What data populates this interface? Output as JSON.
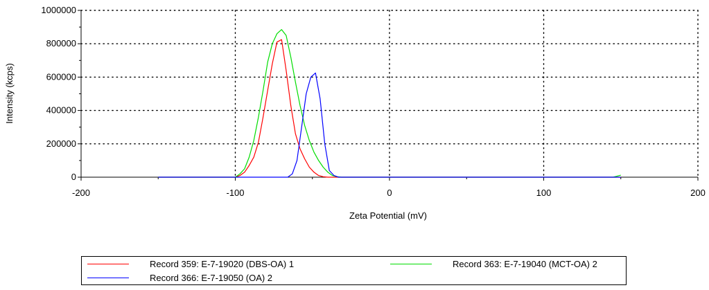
{
  "chart_data": {
    "type": "line",
    "title": "",
    "xlabel": "Zeta Potential (mV)",
    "ylabel": "Intensity (kcps)",
    "xlim": [
      -200,
      200
    ],
    "ylim": [
      0,
      1000000
    ],
    "x_ticks": [
      -200,
      -100,
      0,
      100,
      200
    ],
    "y_ticks": [
      0,
      200000,
      400000,
      600000,
      800000,
      1000000
    ],
    "x_tick_labels": [
      "-200",
      "-100",
      "0",
      "100",
      "200"
    ],
    "y_tick_labels": [
      "0",
      "200000",
      "400000",
      "600000",
      "800000",
      "1000000"
    ],
    "grid": true,
    "legend_position": "bottom",
    "series": [
      {
        "name": "Record 359: E-7-19020 (DBS-OA)  1",
        "color": "#ff0000",
        "x": [
          -150,
          -100,
          -97,
          -94,
          -91,
          -88,
          -85,
          -82,
          -79,
          -76,
          -73,
          -70,
          -67,
          -64,
          -61,
          -58,
          -55,
          -52,
          -49,
          -46,
          -43,
          -40,
          150
        ],
        "y": [
          0,
          0,
          10000,
          30000,
          70000,
          120000,
          210000,
          360000,
          520000,
          680000,
          810000,
          825000,
          640000,
          430000,
          260000,
          170000,
          110000,
          60000,
          30000,
          10000,
          3000,
          0,
          0
        ]
      },
      {
        "name": "Record 363: E-7-19040 (MCT-OA)  2",
        "color": "#00dd00",
        "x": [
          -150,
          -100,
          -97,
          -94,
          -91,
          -88,
          -85,
          -82,
          -79,
          -76,
          -73,
          -70,
          -67,
          -64,
          -61,
          -58,
          -55,
          -52,
          -49,
          -46,
          -43,
          -40,
          -37,
          -34,
          -31,
          145,
          150
        ],
        "y": [
          0,
          0,
          20000,
          50000,
          120000,
          220000,
          360000,
          520000,
          690000,
          800000,
          860000,
          885000,
          850000,
          720000,
          570000,
          430000,
          310000,
          220000,
          150000,
          100000,
          60000,
          30000,
          10000,
          3000,
          0,
          0,
          12000
        ]
      },
      {
        "name": "Record 366: E-7-19050 (OA)  2",
        "color": "#0000ff",
        "x": [
          -150,
          -66,
          -63,
          -60,
          -57,
          -54,
          -51,
          -48,
          -45,
          -42,
          -39,
          -36,
          -33,
          150
        ],
        "y": [
          0,
          0,
          20000,
          100000,
          300000,
          500000,
          600000,
          625000,
          470000,
          200000,
          40000,
          10000,
          0,
          0
        ]
      }
    ]
  }
}
